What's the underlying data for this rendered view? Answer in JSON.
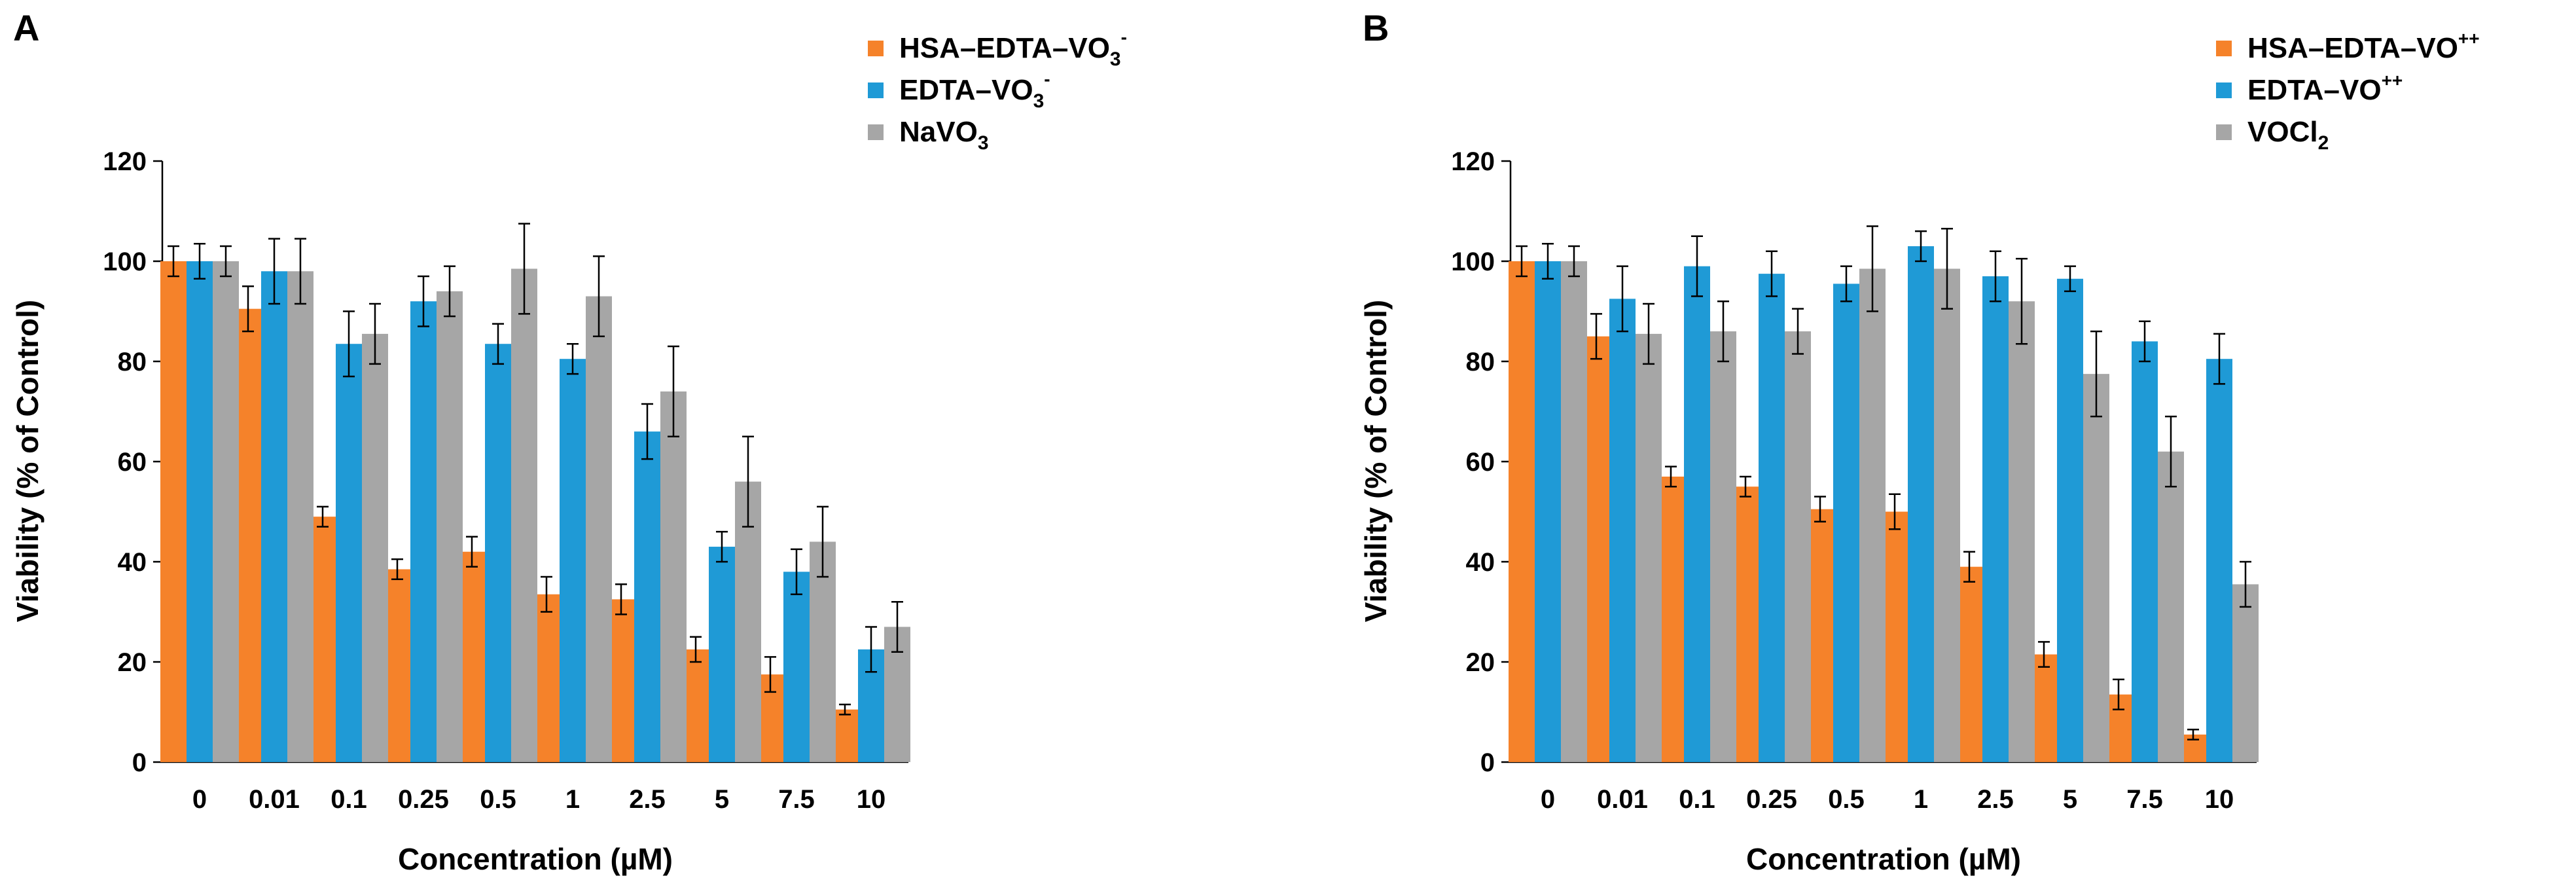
{
  "chart_data": [
    {
      "panel": "A",
      "type": "bar",
      "xlabel": "Concentration (µM)",
      "ylabel": "Viability (% of Control)",
      "ylim": [
        0,
        120
      ],
      "yticks": [
        0,
        20,
        40,
        60,
        80,
        100,
        120
      ],
      "categories": [
        "0",
        "0.01",
        "0.1",
        "0.25",
        "0.5",
        "1",
        "2.5",
        "5",
        "7.5",
        "10"
      ],
      "legend_position": "top-right",
      "series": [
        {
          "name": "HSA–EDTA–VO3-",
          "label_main": "HSA–EDTA–VO",
          "label_sub": "3",
          "label_sup": "-",
          "color": "#F5822A",
          "values": [
            100,
            90.5,
            49,
            38.5,
            42,
            33.5,
            32.5,
            22.5,
            17.5,
            10.5
          ],
          "errors": [
            3,
            4.5,
            2,
            2,
            3,
            3.5,
            3,
            2.5,
            3.5,
            1
          ]
        },
        {
          "name": "EDTA–VO3-",
          "label_main": "EDTA–VO",
          "label_sub": "3",
          "label_sup": "-",
          "color": "#1F9AD6",
          "values": [
            100,
            98,
            83.5,
            92,
            83.5,
            80.5,
            66,
            43,
            38,
            22.5
          ],
          "errors": [
            3.5,
            6.5,
            6.5,
            5,
            4,
            3,
            5.5,
            3,
            4.5,
            4.5
          ]
        },
        {
          "name": "NaVO3",
          "label_main": "NaVO",
          "label_sub": "3",
          "label_sup": "",
          "color": "#A6A6A6",
          "values": [
            100,
            98,
            85.5,
            94,
            98.5,
            93,
            74,
            56,
            44,
            27
          ],
          "errors": [
            3,
            6.5,
            6,
            5,
            9,
            8,
            9,
            9,
            7,
            5
          ]
        }
      ]
    },
    {
      "panel": "B",
      "type": "bar",
      "xlabel": "Concentration (µM)",
      "ylabel": "Viability (% of Control)",
      "ylim": [
        0,
        120
      ],
      "yticks": [
        0,
        20,
        40,
        60,
        80,
        100,
        120
      ],
      "categories": [
        "0",
        "0.01",
        "0.1",
        "0.25",
        "0.5",
        "1",
        "2.5",
        "5",
        "7.5",
        "10"
      ],
      "legend_position": "top-right",
      "series": [
        {
          "name": "HSA–EDTA–VO++",
          "label_main": "HSA–EDTA–VO",
          "label_sub": "",
          "label_sup": "++",
          "color": "#F5822A",
          "values": [
            100,
            85,
            57,
            55,
            50.5,
            50,
            39,
            21.5,
            13.5,
            5.5
          ],
          "errors": [
            3,
            4.5,
            2,
            2,
            2.5,
            3.5,
            3,
            2.5,
            3,
            1
          ]
        },
        {
          "name": "EDTA–VO++",
          "label_main": "EDTA–VO",
          "label_sub": "",
          "label_sup": "++",
          "color": "#1F9AD6",
          "values": [
            100,
            92.5,
            99,
            97.5,
            95.5,
            103,
            97,
            96.5,
            84,
            80.5
          ],
          "errors": [
            3.5,
            6.5,
            6,
            4.5,
            3.5,
            3,
            5,
            2.5,
            4,
            5
          ]
        },
        {
          "name": "VOCl2",
          "label_main": "VOCl",
          "label_sub": "2",
          "label_sup": "",
          "color": "#A6A6A6",
          "values": [
            100,
            85.5,
            86,
            86,
            98.5,
            98.5,
            92,
            77.5,
            62,
            35.5
          ],
          "errors": [
            3,
            6,
            6,
            4.5,
            8.5,
            8,
            8.5,
            8.5,
            7,
            4.5
          ]
        }
      ]
    }
  ]
}
